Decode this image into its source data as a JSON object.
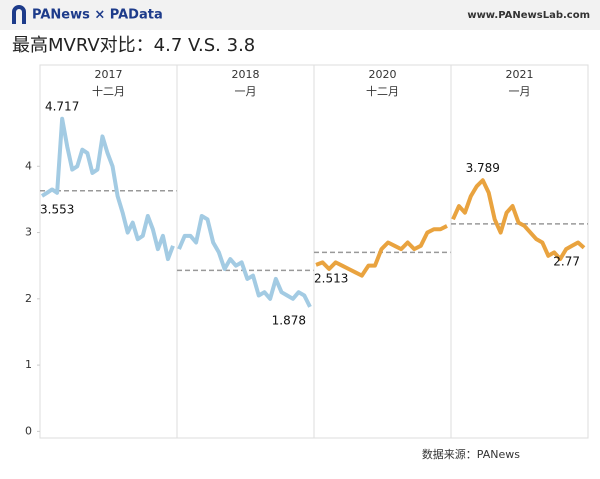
{
  "header": {
    "brand": "PANews × PAData",
    "site": "www.PANewsLab.com"
  },
  "chart_data": {
    "type": "line",
    "title": "最高MVRV对比：4.7 V.S. 3.8",
    "ylim": [
      -0.1,
      5.0
    ],
    "yticks": [
      0,
      1,
      2,
      3,
      4
    ],
    "panels": [
      {
        "year": "2017",
        "month": "十二月",
        "color": "#a3cbe3",
        "average": 3.63,
        "values": [
          3.553,
          3.6,
          3.65,
          3.6,
          4.717,
          4.3,
          3.95,
          4.0,
          4.25,
          4.2,
          3.9,
          3.95,
          4.45,
          4.2,
          4.0,
          3.55,
          3.3,
          3.0,
          3.15,
          2.9,
          2.95,
          3.25,
          3.05,
          2.75,
          2.95,
          2.6,
          2.8
        ]
      },
      {
        "year": "2018",
        "month": "一月",
        "color": "#a3cbe3",
        "average": 2.43,
        "values": [
          2.75,
          2.95,
          2.95,
          2.85,
          3.25,
          3.2,
          2.85,
          2.7,
          2.45,
          2.6,
          2.5,
          2.55,
          2.3,
          2.35,
          2.05,
          2.1,
          2.0,
          2.3,
          2.1,
          2.05,
          2.0,
          2.1,
          2.05,
          1.878
        ]
      },
      {
        "year": "2020",
        "month": "十二月",
        "color": "#e9a33f",
        "average": 2.7,
        "values": [
          2.513,
          2.55,
          2.45,
          2.55,
          2.5,
          2.45,
          2.4,
          2.35,
          2.5,
          2.5,
          2.75,
          2.85,
          2.8,
          2.75,
          2.85,
          2.75,
          2.8,
          3.0,
          3.05,
          3.05,
          3.1
        ]
      },
      {
        "year": "2021",
        "month": "一月",
        "color": "#e9a33f",
        "average": 3.13,
        "values": [
          3.2,
          3.4,
          3.3,
          3.55,
          3.7,
          3.789,
          3.6,
          3.2,
          3.0,
          3.3,
          3.4,
          3.15,
          3.1,
          3.0,
          2.9,
          2.85,
          2.65,
          2.7,
          2.6,
          2.75,
          2.8,
          2.85,
          2.77
        ]
      }
    ],
    "source": "数据来源：PANews"
  }
}
